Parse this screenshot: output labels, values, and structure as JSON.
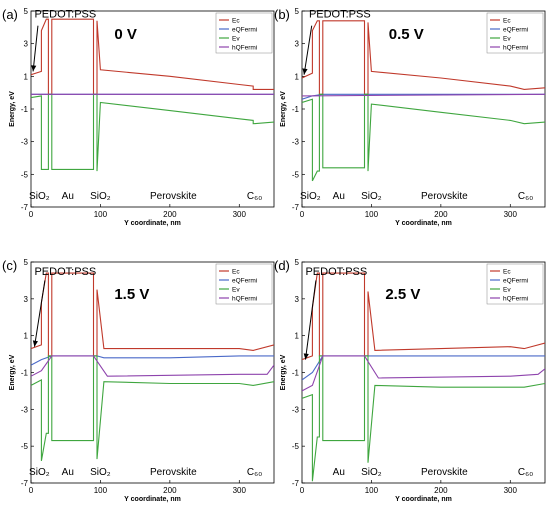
{
  "chart_data": [
    {
      "type": "line",
      "panel_label": "(a)",
      "voltage_label": "0 V",
      "pedot_label": "PEDOT:PSS",
      "region_labels": {
        "sio2_left": "SiO₂",
        "au": "Au",
        "sio2_right": "SiO₂",
        "perovskite": "Perovskite",
        "c60": "C₆₀"
      },
      "xlabel": "Y coordinate, nm",
      "ylabel": "Energy, eV",
      "xlim": [
        0,
        350
      ],
      "ylim": [
        -7,
        5
      ],
      "xticks": [
        0,
        100,
        200,
        300
      ],
      "yticks": [
        5,
        3,
        1,
        -1,
        -3,
        -5,
        -7
      ],
      "legend": [
        "Ec",
        "eQFermi",
        "Ev",
        "hQFermi"
      ],
      "legend_position": "top-right",
      "series": [
        {
          "name": "Ec",
          "color": "#c0392b",
          "points": [
            [
              0,
              1.1
            ],
            [
              15,
              1.3
            ],
            [
              15,
              3.8
            ],
            [
              22,
              4.5
            ],
            [
              25,
              4.5
            ],
            [
              25,
              -0.1
            ],
            [
              30,
              -0.1
            ],
            [
              30,
              4.5
            ],
            [
              90,
              4.5
            ],
            [
              90,
              -0.1
            ],
            [
              95,
              -0.1
            ],
            [
              95,
              4.4
            ],
            [
              100,
              1.4
            ],
            [
              200,
              1.0
            ],
            [
              300,
              0.5
            ],
            [
              320,
              0.4
            ],
            [
              320,
              0.2
            ],
            [
              350,
              0.2
            ]
          ]
        },
        {
          "name": "eQFermi",
          "color": "#4a69c8",
          "points": [
            [
              0,
              -0.1
            ],
            [
              350,
              -0.1
            ]
          ]
        },
        {
          "name": "Ev",
          "color": "#3fa63f",
          "points": [
            [
              0,
              -0.3
            ],
            [
              15,
              -0.2
            ],
            [
              15,
              -4.7
            ],
            [
              22,
              -4.7
            ],
            [
              25,
              -4.7
            ],
            [
              25,
              -0.1
            ],
            [
              30,
              -0.1
            ],
            [
              30,
              -4.7
            ],
            [
              90,
              -4.7
            ],
            [
              90,
              -0.1
            ],
            [
              95,
              -0.1
            ],
            [
              95,
              -4.8
            ],
            [
              100,
              -0.6
            ],
            [
              200,
              -1.1
            ],
            [
              300,
              -1.6
            ],
            [
              320,
              -1.7
            ],
            [
              320,
              -1.9
            ],
            [
              350,
              -1.8
            ]
          ]
        },
        {
          "name": "hQFermi",
          "color": "#8e44ad",
          "points": [
            [
              0,
              -0.1
            ],
            [
              350,
              -0.1
            ]
          ]
        }
      ]
    },
    {
      "type": "line",
      "panel_label": "(b)",
      "voltage_label": "0.5 V",
      "pedot_label": "PEDOT:PSS",
      "region_labels": {
        "sio2_left": "SiO₂",
        "au": "Au",
        "sio2_right": "SiO₂",
        "perovskite": "Perovskite",
        "c60": "C₆₀"
      },
      "xlabel": "Y coordinate, nm",
      "ylabel": "Energy, eV",
      "xlim": [
        0,
        350
      ],
      "ylim": [
        -7,
        5
      ],
      "xticks": [
        0,
        100,
        200,
        300
      ],
      "yticks": [
        5,
        3,
        1,
        -1,
        -3,
        -5,
        -7
      ],
      "legend": [
        "Ec",
        "eQFermi",
        "Ev",
        "hQFermi"
      ],
      "legend_position": "top-right",
      "series": [
        {
          "name": "Ec",
          "color": "#c0392b",
          "points": [
            [
              0,
              0.9
            ],
            [
              15,
              1.2
            ],
            [
              15,
              3.8
            ],
            [
              22,
              4.4
            ],
            [
              25,
              4.4
            ],
            [
              25,
              -0.1
            ],
            [
              30,
              -0.1
            ],
            [
              30,
              4.4
            ],
            [
              90,
              4.4
            ],
            [
              90,
              -0.1
            ],
            [
              95,
              -0.1
            ],
            [
              95,
              4.3
            ],
            [
              100,
              1.3
            ],
            [
              200,
              0.9
            ],
            [
              300,
              0.4
            ],
            [
              320,
              0.2
            ],
            [
              350,
              0.3
            ]
          ]
        },
        {
          "name": "eQFermi",
          "color": "#4a69c8",
          "points": [
            [
              0,
              -0.4
            ],
            [
              15,
              -0.2
            ],
            [
              30,
              -0.1
            ],
            [
              350,
              -0.1
            ]
          ]
        },
        {
          "name": "Ev",
          "color": "#3fa63f",
          "points": [
            [
              0,
              -0.6
            ],
            [
              15,
              -0.4
            ],
            [
              15,
              -5.4
            ],
            [
              22,
              -4.8
            ],
            [
              25,
              -4.8
            ],
            [
              25,
              -0.1
            ],
            [
              30,
              -0.1
            ],
            [
              30,
              -4.6
            ],
            [
              90,
              -4.6
            ],
            [
              90,
              -0.1
            ],
            [
              95,
              -0.1
            ],
            [
              95,
              -4.8
            ],
            [
              100,
              -0.7
            ],
            [
              200,
              -1.2
            ],
            [
              300,
              -1.7
            ],
            [
              320,
              -1.9
            ],
            [
              350,
              -1.8
            ]
          ]
        },
        {
          "name": "hQFermi",
          "color": "#8e44ad",
          "points": [
            [
              0,
              -0.2
            ],
            [
              350,
              -0.1
            ]
          ]
        }
      ]
    },
    {
      "type": "line",
      "panel_label": "(c)",
      "voltage_label": "1.5 V",
      "pedot_label": "PEDOT:PSS",
      "region_labels": {
        "sio2_left": "SiO₂",
        "au": "Au",
        "sio2_right": "SiO₂",
        "perovskite": "Perovskite",
        "c60": "C₆₀"
      },
      "xlabel": "Y coordinate, nm",
      "ylabel": "Energy, eV",
      "xlim": [
        0,
        350
      ],
      "ylim": [
        -7,
        5
      ],
      "xticks": [
        0,
        100,
        200,
        300
      ],
      "yticks": [
        5,
        3,
        1,
        -1,
        -3,
        -5,
        -7
      ],
      "legend": [
        "Ec",
        "eQFermi",
        "Ev",
        "hQFermi"
      ],
      "legend_position": "top-right",
      "series": [
        {
          "name": "Ec",
          "color": "#c0392b",
          "points": [
            [
              0,
              0.3
            ],
            [
              15,
              0.5
            ],
            [
              15,
              2.8
            ],
            [
              22,
              4.4
            ],
            [
              25,
              4.4
            ],
            [
              25,
              -0.1
            ],
            [
              30,
              -0.1
            ],
            [
              30,
              4.4
            ],
            [
              90,
              4.4
            ],
            [
              90,
              -0.1
            ],
            [
              95,
              -0.1
            ],
            [
              95,
              3.5
            ],
            [
              105,
              0.3
            ],
            [
              200,
              0.3
            ],
            [
              300,
              0.3
            ],
            [
              320,
              0.2
            ],
            [
              350,
              0.5
            ]
          ]
        },
        {
          "name": "eQFermi",
          "color": "#4a69c8",
          "points": [
            [
              0,
              -0.6
            ],
            [
              15,
              -0.3
            ],
            [
              30,
              -0.1
            ],
            [
              95,
              -0.1
            ],
            [
              105,
              -0.2
            ],
            [
              200,
              -0.2
            ],
            [
              300,
              -0.1
            ],
            [
              350,
              -0.1
            ]
          ]
        },
        {
          "name": "Ev",
          "color": "#3fa63f",
          "points": [
            [
              0,
              -1.7
            ],
            [
              15,
              -1.4
            ],
            [
              15,
              -5.8
            ],
            [
              22,
              -4.3
            ],
            [
              25,
              -4.3
            ],
            [
              25,
              -0.1
            ],
            [
              30,
              -0.1
            ],
            [
              30,
              -4.7
            ],
            [
              90,
              -4.7
            ],
            [
              90,
              -0.1
            ],
            [
              95,
              -0.1
            ],
            [
              95,
              -5.7
            ],
            [
              105,
              -1.5
            ],
            [
              200,
              -1.6
            ],
            [
              300,
              -1.6
            ],
            [
              320,
              -1.7
            ],
            [
              350,
              -1.5
            ]
          ]
        },
        {
          "name": "hQFermi",
          "color": "#8e44ad",
          "points": [
            [
              0,
              -1.2
            ],
            [
              15,
              -0.9
            ],
            [
              30,
              -0.1
            ],
            [
              90,
              -0.1
            ],
            [
              110,
              -1.2
            ],
            [
              300,
              -1.1
            ],
            [
              340,
              -1.1
            ],
            [
              350,
              -0.6
            ]
          ]
        }
      ]
    },
    {
      "type": "line",
      "panel_label": "(d)",
      "voltage_label": "2.5 V",
      "pedot_label": "PEDOT:PSS",
      "region_labels": {
        "sio2_left": "",
        "au": "Au",
        "sio2_right": "SiO₂",
        "perovskite": "Perovskite",
        "c60": "C₆₀"
      },
      "xlabel": "Y coordinate, nm",
      "ylabel": "Energy, eV",
      "xlim": [
        0,
        350
      ],
      "ylim": [
        -7,
        5
      ],
      "xticks": [
        0,
        100,
        200,
        300
      ],
      "yticks": [
        5,
        3,
        1,
        -1,
        -3,
        -5,
        -7
      ],
      "legend": [
        "Ec",
        "eQFermi",
        "Ev",
        "hQFermi"
      ],
      "legend_position": "top-right",
      "series": [
        {
          "name": "Ec",
          "color": "#c0392b",
          "points": [
            [
              0,
              -0.3
            ],
            [
              15,
              -0.1
            ],
            [
              15,
              2.5
            ],
            [
              22,
              4.4
            ],
            [
              25,
              4.4
            ],
            [
              25,
              -0.1
            ],
            [
              30,
              -0.1
            ],
            [
              30,
              4.4
            ],
            [
              90,
              4.4
            ],
            [
              90,
              -0.1
            ],
            [
              95,
              -0.1
            ],
            [
              95,
              3.4
            ],
            [
              105,
              0.2
            ],
            [
              200,
              0.3
            ],
            [
              300,
              0.4
            ],
            [
              320,
              0.3
            ],
            [
              350,
              0.6
            ]
          ]
        },
        {
          "name": "eQFermi",
          "color": "#4a69c8",
          "points": [
            [
              0,
              -1.4
            ],
            [
              15,
              -1.0
            ],
            [
              30,
              -0.1
            ],
            [
              95,
              -0.1
            ],
            [
              105,
              -0.1
            ],
            [
              300,
              -0.1
            ],
            [
              350,
              -0.1
            ]
          ]
        },
        {
          "name": "Ev",
          "color": "#3fa63f",
          "points": [
            [
              0,
              -2.4
            ],
            [
              15,
              -2.2
            ],
            [
              15,
              -6.9
            ],
            [
              22,
              -4.5
            ],
            [
              25,
              -4.5
            ],
            [
              25,
              -0.1
            ],
            [
              30,
              -0.1
            ],
            [
              30,
              -4.7
            ],
            [
              90,
              -4.7
            ],
            [
              90,
              -0.1
            ],
            [
              95,
              -0.1
            ],
            [
              95,
              -5.9
            ],
            [
              105,
              -1.7
            ],
            [
              200,
              -1.8
            ],
            [
              300,
              -1.8
            ],
            [
              320,
              -1.8
            ],
            [
              350,
              -1.6
            ]
          ]
        },
        {
          "name": "hQFermi",
          "color": "#8e44ad",
          "points": [
            [
              0,
              -2.0
            ],
            [
              15,
              -1.7
            ],
            [
              30,
              -0.1
            ],
            [
              90,
              -0.1
            ],
            [
              110,
              -1.3
            ],
            [
              300,
              -1.2
            ],
            [
              340,
              -1.1
            ],
            [
              350,
              -0.8
            ]
          ]
        }
      ]
    }
  ]
}
